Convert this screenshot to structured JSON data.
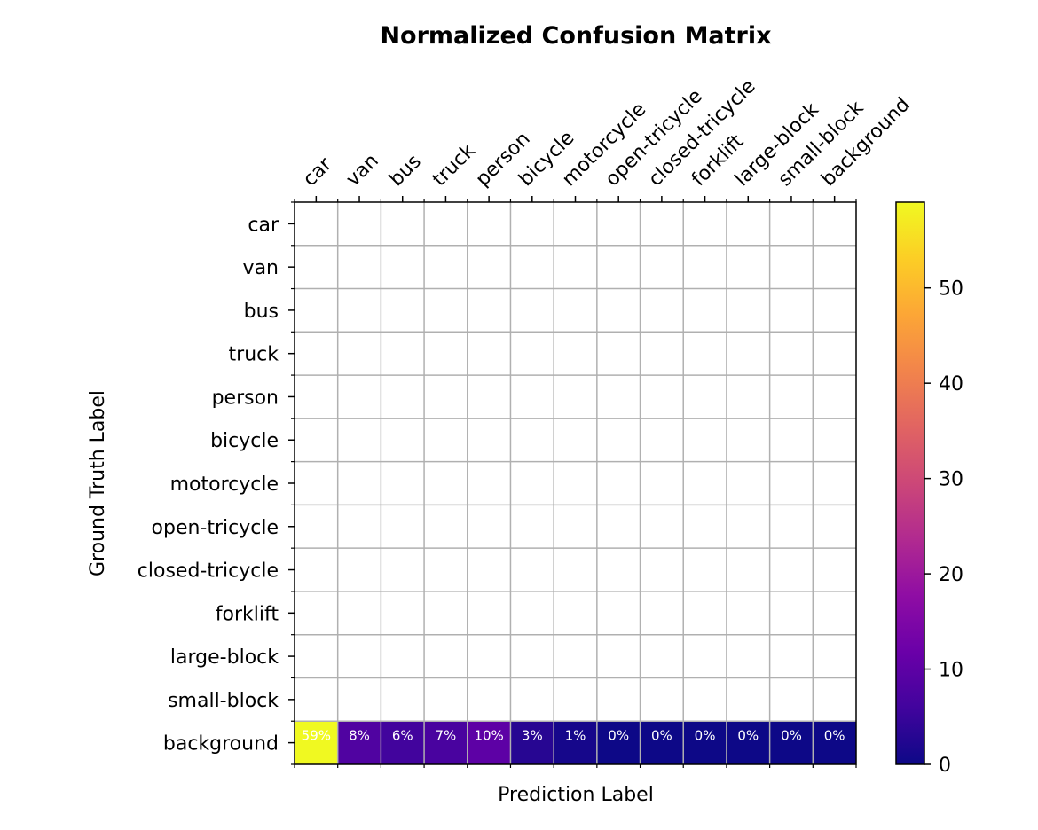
{
  "chart_data": {
    "type": "heatmap",
    "title": "Normalized Confusion Matrix",
    "xlabel": "Prediction Label",
    "ylabel": "Ground Truth Label",
    "x_categories": [
      "car",
      "van",
      "bus",
      "truck",
      "person",
      "bicycle",
      "motorcycle",
      "open-tricycle",
      "closed-tricycle",
      "forklift",
      "large-block",
      "small-block",
      "background"
    ],
    "y_categories": [
      "car",
      "van",
      "bus",
      "truck",
      "person",
      "bicycle",
      "motorcycle",
      "open-tricycle",
      "closed-tricycle",
      "forklift",
      "large-block",
      "small-block",
      "background"
    ],
    "rows": [
      {
        "label": "car",
        "values": [
          null,
          null,
          null,
          null,
          null,
          null,
          null,
          null,
          null,
          null,
          null,
          null,
          null
        ],
        "texts": [
          "",
          "",
          "",
          "",
          "",
          "",
          "",
          "",
          "",
          "",
          "",
          "",
          ""
        ]
      },
      {
        "label": "van",
        "values": [
          null,
          null,
          null,
          null,
          null,
          null,
          null,
          null,
          null,
          null,
          null,
          null,
          null
        ],
        "texts": [
          "",
          "",
          "",
          "",
          "",
          "",
          "",
          "",
          "",
          "",
          "",
          "",
          ""
        ]
      },
      {
        "label": "bus",
        "values": [
          null,
          null,
          null,
          null,
          null,
          null,
          null,
          null,
          null,
          null,
          null,
          null,
          null
        ],
        "texts": [
          "",
          "",
          "",
          "",
          "",
          "",
          "",
          "",
          "",
          "",
          "",
          "",
          ""
        ]
      },
      {
        "label": "truck",
        "values": [
          null,
          null,
          null,
          null,
          null,
          null,
          null,
          null,
          null,
          null,
          null,
          null,
          null
        ],
        "texts": [
          "",
          "",
          "",
          "",
          "",
          "",
          "",
          "",
          "",
          "",
          "",
          "",
          ""
        ]
      },
      {
        "label": "person",
        "values": [
          null,
          null,
          null,
          null,
          null,
          null,
          null,
          null,
          null,
          null,
          null,
          null,
          null
        ],
        "texts": [
          "",
          "",
          "",
          "",
          "",
          "",
          "",
          "",
          "",
          "",
          "",
          "",
          ""
        ]
      },
      {
        "label": "bicycle",
        "values": [
          null,
          null,
          null,
          null,
          null,
          null,
          null,
          null,
          null,
          null,
          null,
          null,
          null
        ],
        "texts": [
          "",
          "",
          "",
          "",
          "",
          "",
          "",
          "",
          "",
          "",
          "",
          "",
          ""
        ]
      },
      {
        "label": "motorcycle",
        "values": [
          null,
          null,
          null,
          null,
          null,
          null,
          null,
          null,
          null,
          null,
          null,
          null,
          null
        ],
        "texts": [
          "",
          "",
          "",
          "",
          "",
          "",
          "",
          "",
          "",
          "",
          "",
          "",
          ""
        ]
      },
      {
        "label": "open-tricycle",
        "values": [
          null,
          null,
          null,
          null,
          null,
          null,
          null,
          null,
          null,
          null,
          null,
          null,
          null
        ],
        "texts": [
          "",
          "",
          "",
          "",
          "",
          "",
          "",
          "",
          "",
          "",
          "",
          "",
          ""
        ]
      },
      {
        "label": "closed-tricycle",
        "values": [
          null,
          null,
          null,
          null,
          null,
          null,
          null,
          null,
          null,
          null,
          null,
          null,
          null
        ],
        "texts": [
          "",
          "",
          "",
          "",
          "",
          "",
          "",
          "",
          "",
          "",
          "",
          "",
          ""
        ]
      },
      {
        "label": "forklift",
        "values": [
          null,
          null,
          null,
          null,
          null,
          null,
          null,
          null,
          null,
          null,
          null,
          null,
          null
        ],
        "texts": [
          "",
          "",
          "",
          "",
          "",
          "",
          "",
          "",
          "",
          "",
          "",
          "",
          ""
        ]
      },
      {
        "label": "large-block",
        "values": [
          null,
          null,
          null,
          null,
          null,
          null,
          null,
          null,
          null,
          null,
          null,
          null,
          null
        ],
        "texts": [
          "",
          "",
          "",
          "",
          "",
          "",
          "",
          "",
          "",
          "",
          "",
          "",
          ""
        ]
      },
      {
        "label": "small-block",
        "values": [
          null,
          null,
          null,
          null,
          null,
          null,
          null,
          null,
          null,
          null,
          null,
          null,
          null
        ],
        "texts": [
          "",
          "",
          "",
          "",
          "",
          "",
          "",
          "",
          "",
          "",
          "",
          "",
          ""
        ]
      },
      {
        "label": "background",
        "values": [
          59,
          8,
          6,
          7,
          10,
          3,
          1,
          0,
          0,
          0,
          0,
          0,
          0
        ],
        "texts": [
          "59%",
          "8%",
          "6%",
          "7%",
          "10%",
          "3%",
          "1%",
          "0%",
          "0%",
          "0%",
          "0%",
          "0%",
          "0%"
        ]
      }
    ],
    "colorbar": {
      "colormap": "plasma",
      "range": [
        0,
        59
      ],
      "ticks": [
        0,
        10,
        20,
        30,
        40,
        50
      ],
      "tick_labels": [
        "0",
        "10",
        "20",
        "30",
        "40",
        "50"
      ]
    },
    "empty_cell_color": "#ffffff",
    "grid": true,
    "grid_color": "#b0b0b0"
  }
}
